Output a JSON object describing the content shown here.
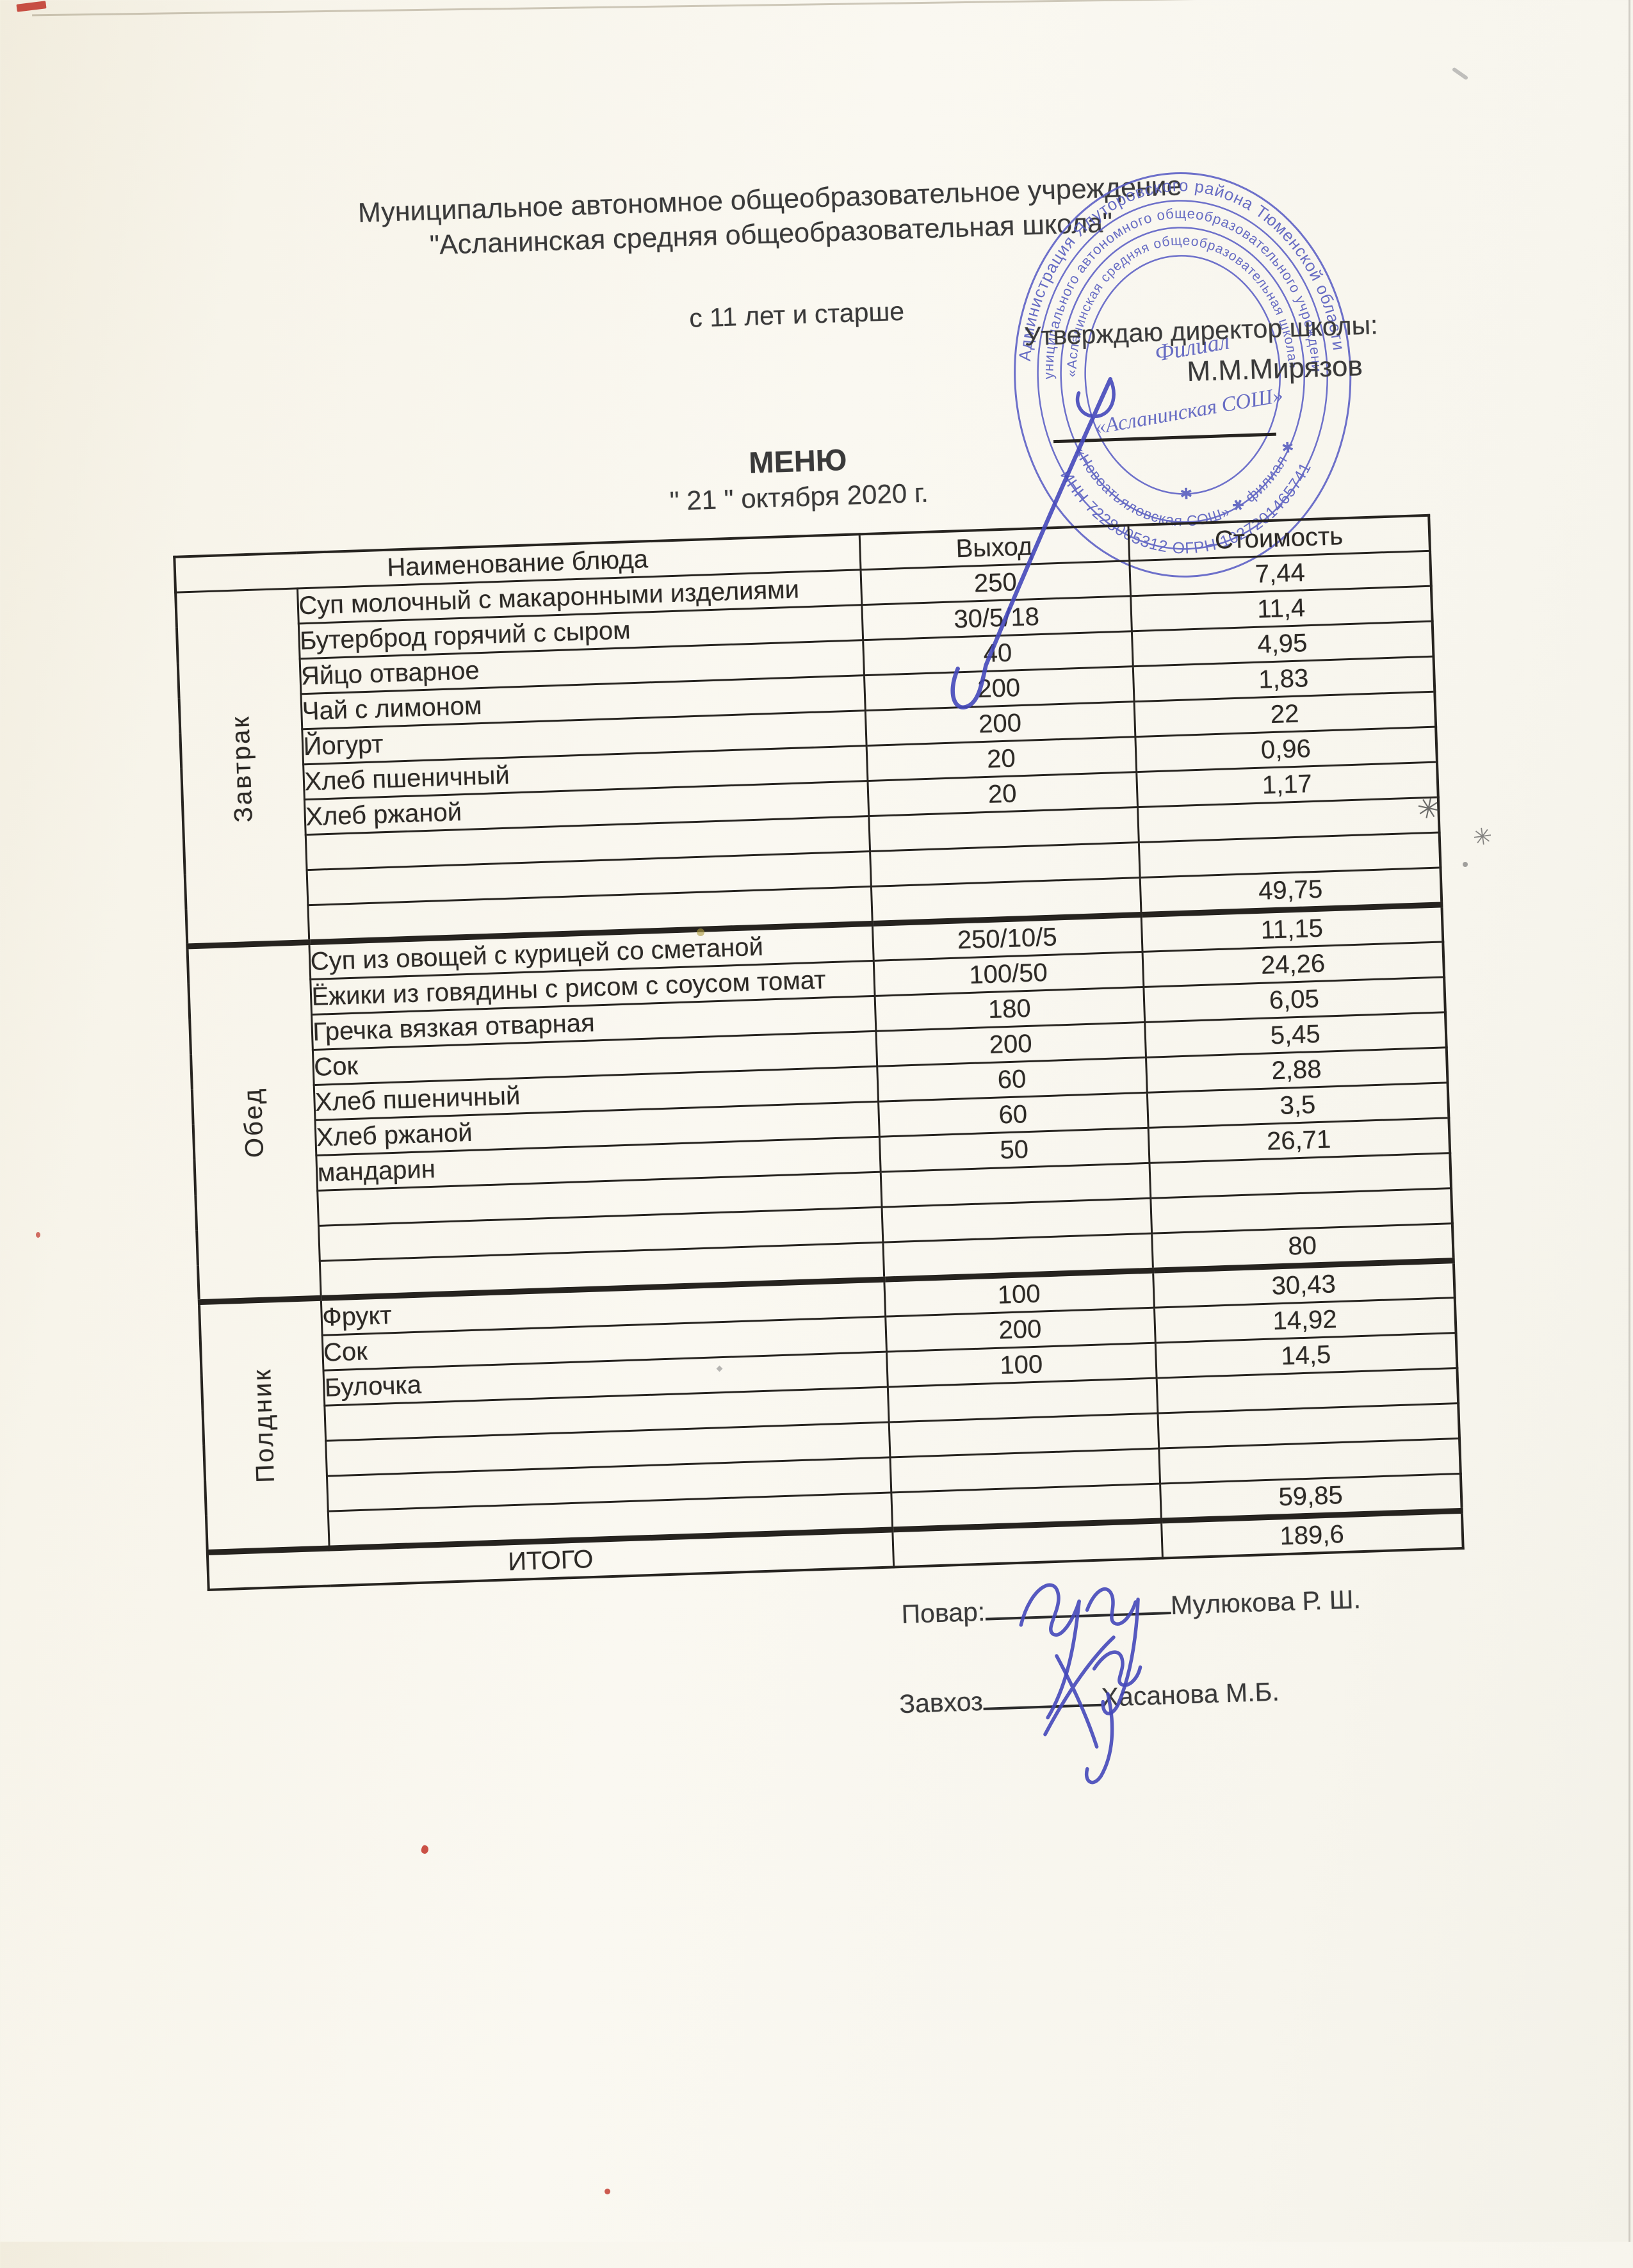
{
  "colors": {
    "paper": "#f8f5ec",
    "ink_black": "#2d2a26",
    "stamp_blue": "#545abe",
    "signature_blue": "#4549bb",
    "speck_red": "#c03227"
  },
  "header": {
    "org_line1": "Муниципальное автономное общеобразовательное учреждение",
    "org_line2": "\"Асланинская средняя общеобразовательная школа\"",
    "age_note": "с 11 лет и старше",
    "approve_title": "Утверждаю директор школы:",
    "approve_name": "М.М.Мирязов",
    "menu_title": "МЕНЮ",
    "menu_date": "\" 21 \" октября 2020 г."
  },
  "stamp": {
    "ring_outer_top": "Администрация Ялуторовского района Тюменской области",
    "ring_outer_bottom": "ИНН 7228005312  ОГРН 1027201465741",
    "ring_middle_top": "муниципального автономного общеобразовательного учреждения",
    "ring_middle_bottom": "«Новоатьяловская СОШ» ✱ филиал ✱",
    "ring_inner_top": "«Асланинская средняя общеобразовательная школа»",
    "ring_inner_bottom": "✱",
    "center_line1": "Филиал",
    "center_line2": "«Асланинская СОШ»"
  },
  "table": {
    "col_headers": {
      "name": "Наименование блюда",
      "output": "Выход",
      "cost": "Стоимость"
    },
    "sections": [
      {
        "label": "Завтрак",
        "rows": [
          [
            "Суп молочный с макаронными изделиями",
            "250",
            "7,44"
          ],
          [
            "Бутерброд горячий с сыром",
            "30/5/18",
            "11,4"
          ],
          [
            "Яйцо отварное",
            "40",
            "4,95"
          ],
          [
            "Чай с лимоном",
            "200",
            "1,83"
          ],
          [
            "Йогурт",
            "200",
            "22"
          ],
          [
            "Хлеб пшеничный",
            "20",
            "0,96"
          ],
          [
            "Хлеб ржаной",
            "20",
            "1,17"
          ]
        ],
        "empty_rows": 2,
        "subtotal": "49,75",
        "subtotal_bold": false
      },
      {
        "label": "Обед",
        "rows": [
          [
            "Суп из овощей с курицей со сметаной",
            "250/10/5",
            "11,15"
          ],
          [
            "Ёжики из говядины с рисом с соусом томат",
            "100/50",
            "24,26"
          ],
          [
            "Гречка вязкая отварная",
            "180",
            "6,05"
          ],
          [
            "Сок",
            "200",
            "5,45"
          ],
          [
            "Хлеб пшеничный",
            "60",
            "2,88"
          ],
          [
            "Хлеб ржаной",
            "60",
            "3,5"
          ],
          [
            "мандарин",
            "50",
            "26,71"
          ]
        ],
        "empty_rows": 2,
        "subtotal": "80",
        "subtotal_bold": true
      },
      {
        "label": "Полдник",
        "rows": [
          [
            "Фрукт",
            "100",
            "30,43"
          ],
          [
            "Сок",
            "200",
            "14,92"
          ],
          [
            "Булочка",
            "100",
            "14,5"
          ]
        ],
        "empty_rows": 3,
        "subtotal": "59,85",
        "subtotal_bold": false
      }
    ],
    "total_label": "ИТОГО",
    "total_value": "189,6"
  },
  "signatures": [
    {
      "label": "Повар:",
      "name": "Мулюкова Р. Ш."
    },
    {
      "label": "Завхоз",
      "name": "Хасанова М.Б."
    }
  ]
}
